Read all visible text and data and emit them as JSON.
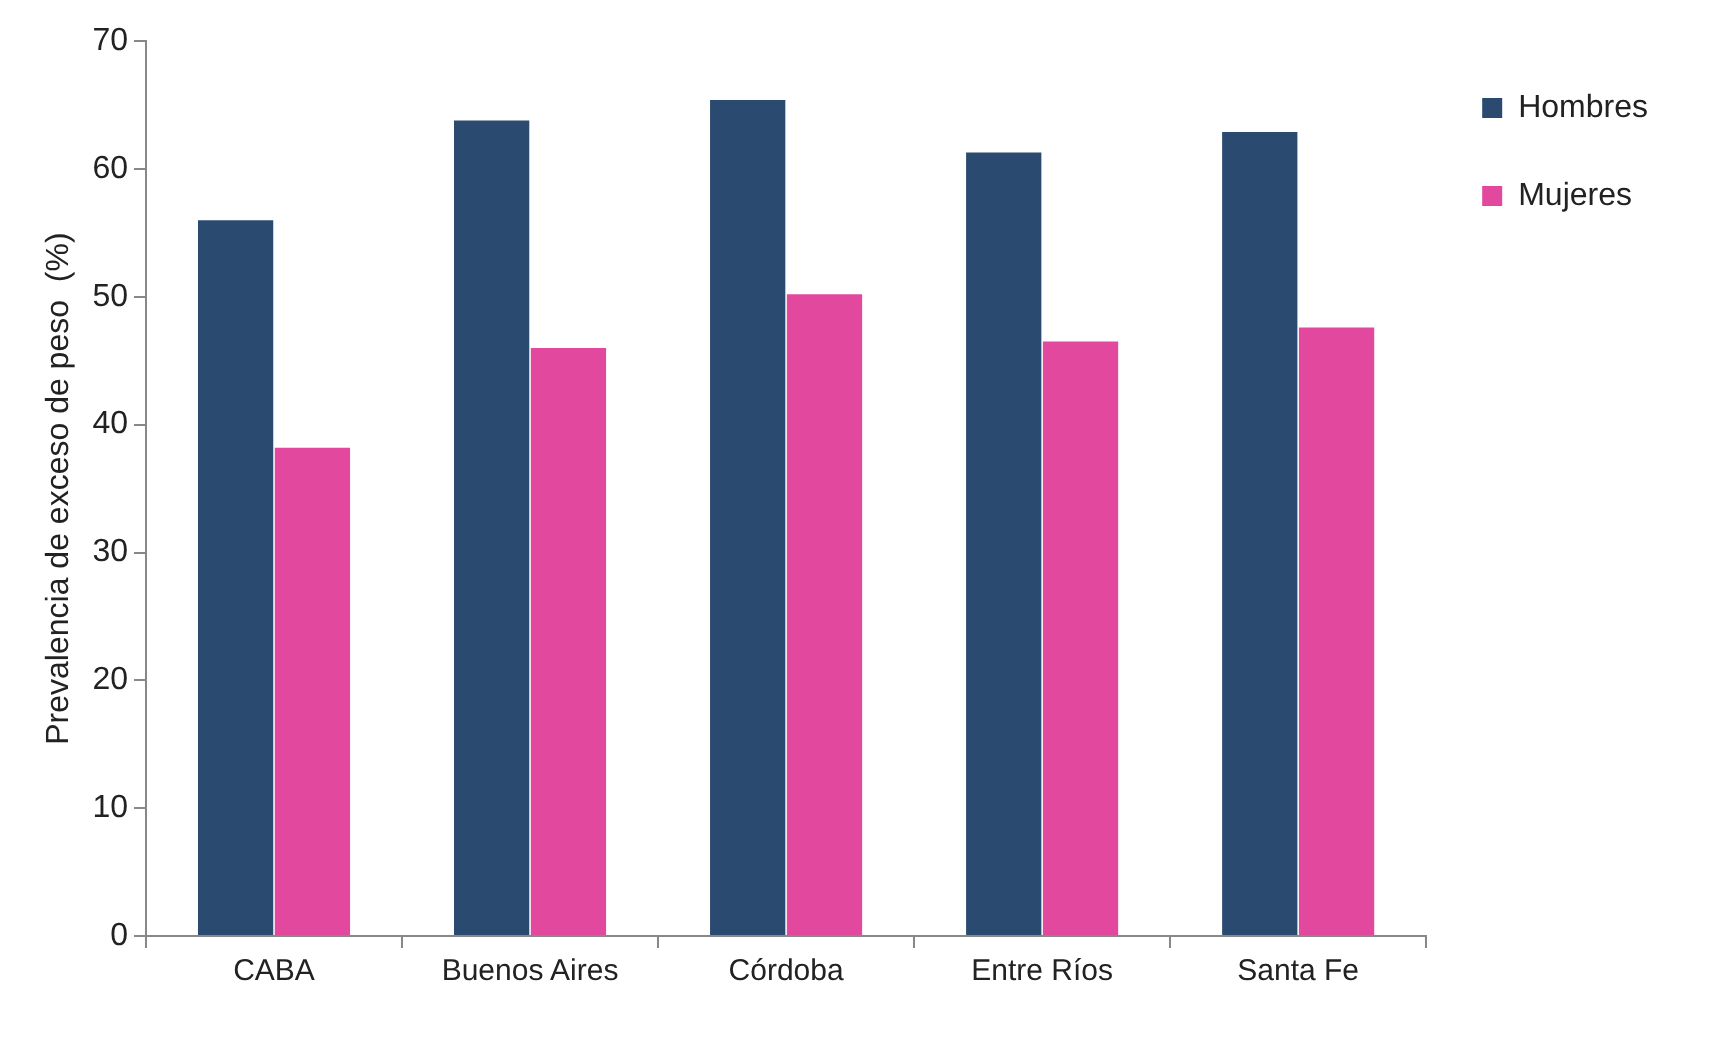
{
  "chart_data": {
    "type": "bar",
    "ylabel": "Prevalencia de exceso de peso  (%)",
    "categories": [
      "CABA",
      "Buenos Aires",
      "Córdoba",
      "Entre Ríos",
      "Santa Fe"
    ],
    "series": [
      {
        "name": "Hombres",
        "color": "#2b4a6f",
        "values": [
          56.0,
          63.8,
          65.4,
          61.3,
          62.9
        ]
      },
      {
        "name": "Mujeres",
        "color": "#e2489e",
        "values": [
          38.2,
          46.0,
          50.2,
          46.5,
          47.6
        ]
      }
    ],
    "ylim": [
      0,
      70
    ],
    "yticks": [
      0,
      10,
      20,
      30,
      40,
      50,
      60,
      70
    ],
    "grid": false,
    "legend": "top right"
  }
}
